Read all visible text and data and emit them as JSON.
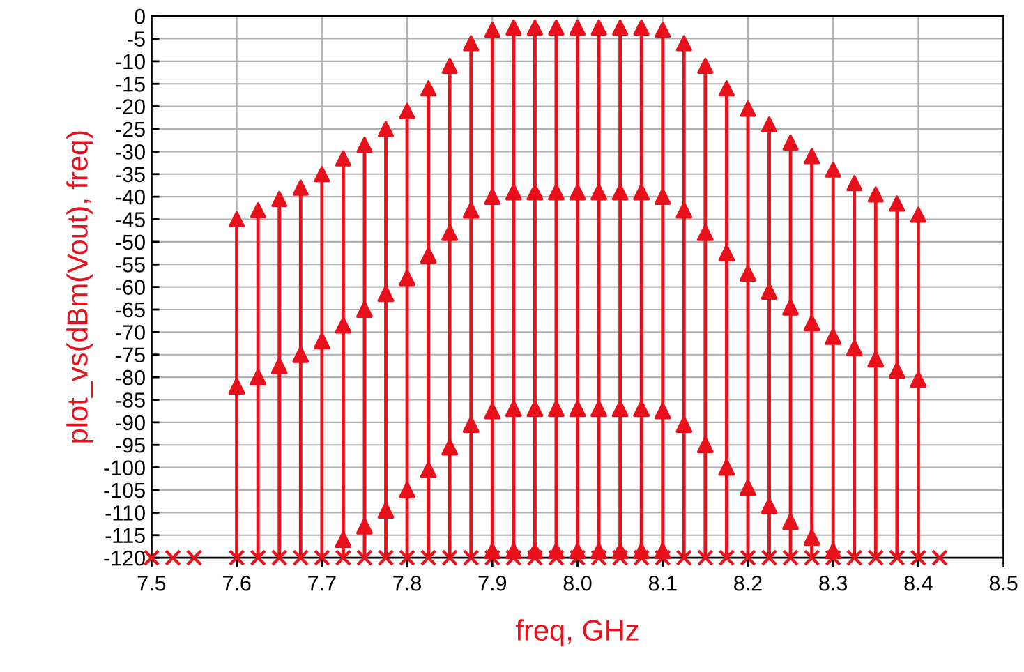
{
  "chart_data": {
    "type": "lollipop",
    "xlabel": "freq, GHz",
    "ylabel": "plot_vs(dBm(Vout), freq)",
    "x": [
      7.6,
      7.625,
      7.65,
      7.675,
      7.7,
      7.725,
      7.75,
      7.775,
      7.8,
      7.825,
      7.85,
      7.875,
      7.9,
      7.925,
      7.95,
      7.975,
      8.0,
      8.025,
      8.05,
      8.075,
      8.1,
      8.125,
      8.15,
      8.175,
      8.2,
      8.225,
      8.25,
      8.275,
      8.3,
      8.325,
      8.35,
      8.375,
      8.4
    ],
    "series": [
      {
        "color": "#e8101a",
        "marker": "triangle",
        "values": [
          -45,
          -43,
          -40.5,
          -38,
          -35,
          -31.5,
          -28.5,
          -25,
          -21,
          -16,
          -11,
          -6,
          -3,
          -2.5,
          -2.5,
          -2.5,
          -2.5,
          -2.5,
          -2.5,
          -2.5,
          -3,
          -6,
          -11,
          -16,
          -20.5,
          -24,
          -28,
          -31,
          -34,
          -37,
          -39.5,
          -41.5,
          -44
        ]
      },
      {
        "type": "scatter",
        "color": "#e8101a",
        "marker": "triangle",
        "values": [
          -82,
          -80,
          -77.5,
          -75,
          -72,
          -68.5,
          -65,
          -61.5,
          -58,
          -53,
          -48,
          -43,
          -40,
          -39,
          -39,
          -39,
          -39,
          -39,
          -39,
          -39,
          -40,
          -43,
          -48,
          -52.5,
          -57,
          -61,
          -64.5,
          -68,
          -71,
          -73.5,
          -76,
          -78.5,
          -80.5
        ]
      },
      {
        "type": "scatter",
        "color": "#e8101a",
        "marker": "triangle",
        "values": [
          null,
          null,
          null,
          null,
          null,
          -116,
          -113,
          -109.5,
          -105,
          -100.5,
          -95.5,
          -90.5,
          -87.5,
          -87,
          -87,
          -87,
          -87,
          -87,
          -87,
          -87,
          -87.5,
          -90.5,
          -95,
          -100,
          -104.5,
          -108.5,
          -112,
          -115.5,
          null,
          null,
          null,
          null,
          null
        ]
      },
      {
        "type": "scatter",
        "color": "#e8101a",
        "marker": "triangle",
        "x": [
          7.9,
          7.925,
          7.95,
          7.975,
          8.0,
          8.025,
          8.05,
          8.075,
          8.1,
          8.3
        ],
        "values": [
          -118.5,
          -118.5,
          -118.5,
          -118.5,
          -118.5,
          -118.5,
          -118.5,
          -118.5,
          -118.5,
          -118.5
        ]
      },
      {
        "type": "scatter",
        "color": "#e8101a",
        "marker": "cross",
        "x": [
          7.5,
          7.525,
          7.55,
          7.6,
          7.625,
          7.65,
          7.675,
          7.7,
          7.725,
          7.75,
          7.775,
          7.8,
          7.825,
          7.85,
          7.875,
          7.9,
          7.925,
          7.95,
          7.975,
          8.0,
          8.025,
          8.05,
          8.075,
          8.1,
          8.125,
          8.15,
          8.175,
          8.2,
          8.225,
          8.25,
          8.275,
          8.3,
          8.325,
          8.35,
          8.375,
          8.4,
          8.425
        ],
        "values": [
          -120,
          -120,
          -120,
          -120,
          -120,
          -120,
          -120,
          -120,
          -120,
          -120,
          -120,
          -120,
          -120,
          -120,
          -120,
          -120,
          -120,
          -120,
          -120,
          -120,
          -120,
          -120,
          -120,
          -120,
          -120,
          -120,
          -120,
          -120,
          -120,
          -120,
          -120,
          -120,
          -120,
          -120,
          -120,
          -120,
          -120
        ]
      }
    ],
    "xlim": [
      7.5,
      8.5
    ],
    "xticks": [
      7.5,
      7.6,
      7.7,
      7.8,
      7.9,
      {
        "value": 8.0,
        "label": "8.0"
      },
      8.1,
      8.2,
      8.3,
      8.4,
      8.5
    ],
    "ylim": [
      -120,
      0
    ],
    "yticks": [
      0,
      -5,
      -10,
      -15,
      -20,
      -25,
      -30,
      -35,
      -40,
      -45,
      -50,
      -55,
      -60,
      -65,
      -70,
      -75,
      -80,
      -85,
      -90,
      -95,
      -100,
      -105,
      -110,
      -115,
      -120
    ],
    "grid": true
  }
}
